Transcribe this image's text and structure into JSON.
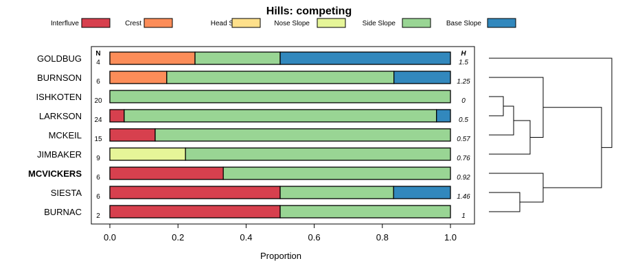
{
  "chart_data": {
    "type": "bar",
    "stacked": true,
    "orientation": "horizontal",
    "title": "Hills: competing",
    "xlabel": "Proportion",
    "xlim": [
      0,
      1
    ],
    "xticks": [
      "0.0",
      "0.2",
      "0.4",
      "0.6",
      "0.8",
      "1.0"
    ],
    "xtick_values": [
      0,
      0.2,
      0.4,
      0.6,
      0.8,
      1.0
    ],
    "n_header": "N",
    "h_header": "H",
    "series": [
      {
        "name": "Interfluve",
        "color": "#d7404e"
      },
      {
        "name": "Crest",
        "color": "#fc8d59"
      },
      {
        "name": "Head Slope",
        "color": "#fee08b"
      },
      {
        "name": "Nose Slope",
        "color": "#e6f598"
      },
      {
        "name": "Side Slope",
        "color": "#99d594"
      },
      {
        "name": "Base Slope",
        "color": "#3288bd"
      }
    ],
    "rows": [
      {
        "name": "GOLDBUG",
        "n": "4",
        "h": "1.5",
        "bold": false,
        "values": [
          0,
          0.25,
          0,
          0,
          0.25,
          0.5
        ]
      },
      {
        "name": "BURNSON",
        "n": "6",
        "h": "1.25",
        "bold": false,
        "values": [
          0,
          0.167,
          0,
          0,
          0.667,
          0.167
        ]
      },
      {
        "name": "ISHKOTEN",
        "n": "20",
        "h": "0",
        "bold": false,
        "values": [
          0,
          0,
          0,
          0,
          1.0,
          0
        ]
      },
      {
        "name": "LARKSON",
        "n": "24",
        "h": "0.5",
        "bold": false,
        "values": [
          0.042,
          0,
          0,
          0,
          0.917,
          0.042
        ]
      },
      {
        "name": "MCKEIL",
        "n": "15",
        "h": "0.57",
        "bold": false,
        "values": [
          0.133,
          0,
          0,
          0,
          0.867,
          0
        ]
      },
      {
        "name": "JIMBAKER",
        "n": "9",
        "h": "0.76",
        "bold": false,
        "values": [
          0,
          0,
          0,
          0.222,
          0.778,
          0
        ]
      },
      {
        "name": "MCVICKERS",
        "n": "6",
        "h": "0.92",
        "bold": true,
        "values": [
          0.333,
          0,
          0,
          0,
          0.667,
          0
        ]
      },
      {
        "name": "SIESTA",
        "n": "6",
        "h": "1.46",
        "bold": false,
        "values": [
          0.5,
          0,
          0,
          0,
          0.333,
          0.167
        ]
      },
      {
        "name": "BURNAC",
        "n": "2",
        "h": "1",
        "bold": false,
        "values": [
          0.5,
          0,
          0,
          0,
          0.5,
          0
        ]
      }
    ],
    "dendrogram": "ordering tree: (GOLDBUG, ((BURNSON, ((ISHKOTEN, LARKSON), MCKEIL), JIMBAKER), (MCVICKERS, (SIESTA, BURNAC))))"
  }
}
